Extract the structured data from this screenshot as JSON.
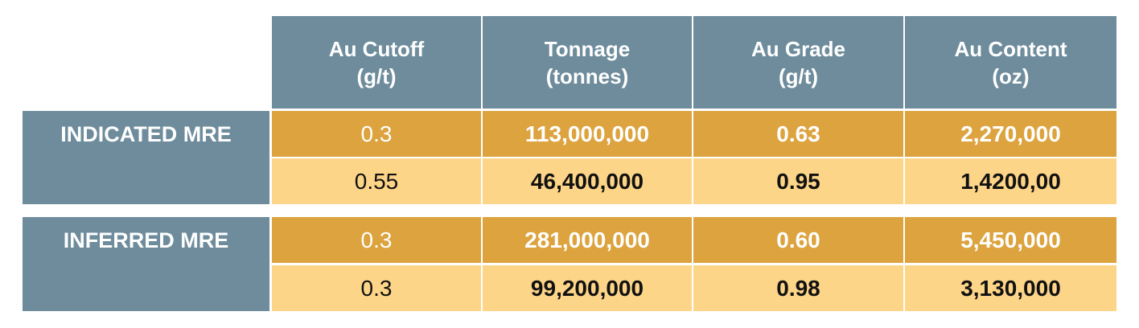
{
  "headers": [
    "Au Cutoff\n(g/t)",
    "Tonnage\n(tonnes)",
    "Au Grade\n(g/t)",
    "Au Content\n(oz)"
  ],
  "groups": [
    {
      "label": "INDICATED MRE",
      "rows": [
        [
          "0.3",
          "113,000,000",
          "0.63",
          "2,270,000"
        ],
        [
          "0.55",
          "46,400,000",
          "0.95",
          "1,4200,00"
        ]
      ]
    },
    {
      "label": "INFERRED MRE",
      "rows": [
        [
          "0.3",
          "281,000,000",
          "0.60",
          "5,450,000"
        ],
        [
          "0.3",
          "99,200,000",
          "0.98",
          "3,130,000"
        ]
      ]
    }
  ]
}
